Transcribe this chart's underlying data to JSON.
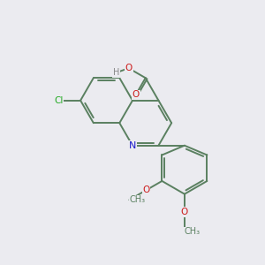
{
  "background_color": "#ebebf0",
  "bond_color": "#5a8060",
  "bond_width": 1.4,
  "atom_colors": {
    "C": "#5a8060",
    "N": "#1a1acc",
    "O": "#cc1a1a",
    "Cl": "#22aa22",
    "H": "#888888"
  },
  "figsize": [
    3.0,
    3.0
  ],
  "dpi": 100,
  "xlim": [
    -1.5,
    8.5
  ],
  "ylim": [
    -3.5,
    5.5
  ]
}
